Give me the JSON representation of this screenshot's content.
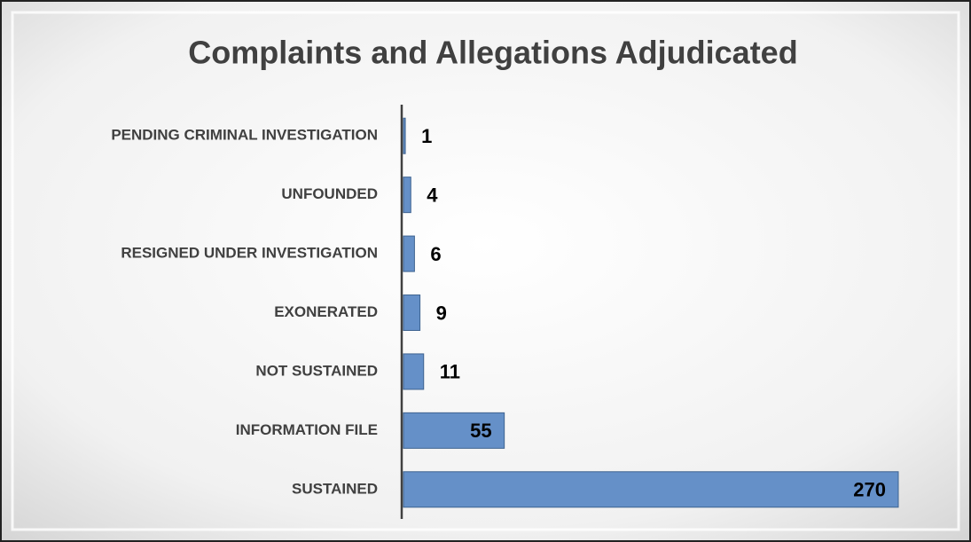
{
  "chart_data": {
    "type": "bar",
    "orientation": "horizontal",
    "title": "Complaints and Allegations Adjudicated",
    "categories": [
      "PENDING CRIMINAL INVESTIGATION",
      "UNFOUNDED",
      "RESIGNED UNDER INVESTIGATION",
      "EXONERATED",
      "NOT SUSTAINED",
      "INFORMATION FILE",
      "SUSTAINED"
    ],
    "values": [
      1,
      4,
      6,
      9,
      11,
      55,
      270
    ],
    "color": "#6590c8"
  }
}
